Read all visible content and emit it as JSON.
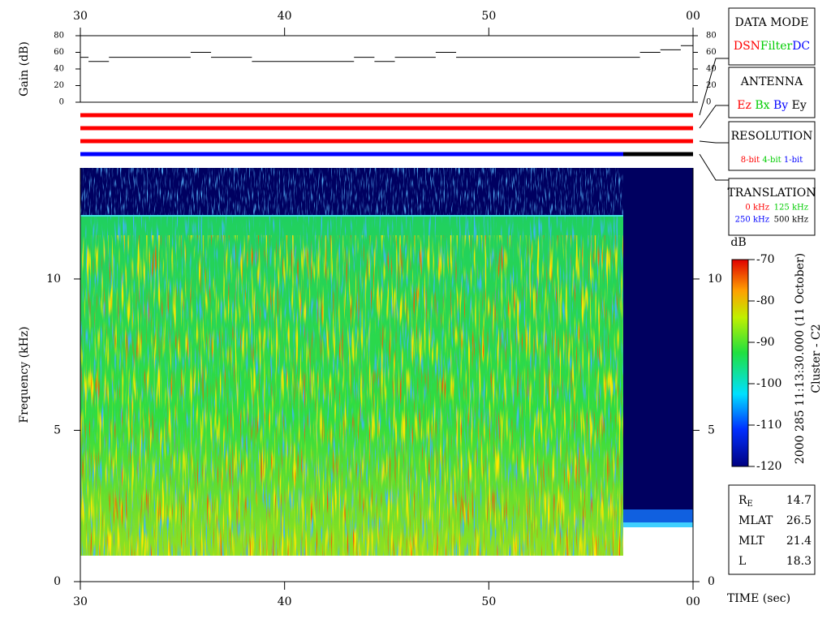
{
  "chart_data": [
    {
      "type": "step",
      "ylabel": "Gain (dB)",
      "x": [
        30,
        30.4,
        31.4,
        35.4,
        36.4,
        38.4,
        43.4,
        44.4,
        45.4,
        47.4,
        48.4,
        57.4,
        58.4,
        59.4
      ],
      "values": [
        54,
        49,
        54,
        60,
        54,
        49,
        54,
        49,
        54,
        60,
        54,
        60,
        63,
        68
      ],
      "color": "#000000",
      "xlim": [
        30,
        60
      ],
      "xticks": [
        30,
        40,
        50,
        {
          "value": 60,
          "label": "00"
        }
      ],
      "ylim": [
        0,
        80
      ],
      "yticks": [
        0,
        20,
        40,
        60,
        80
      ]
    },
    {
      "type": "spectrogram",
      "ylabel": "Frequency (kHz)",
      "xlabel": "TIME (sec)",
      "xlim": [
        30,
        60
      ],
      "xticks": [
        30,
        40,
        50,
        {
          "value": 60,
          "label": "00"
        }
      ],
      "ylim": [
        0,
        13.67
      ],
      "yticks": [
        0,
        5,
        10
      ],
      "colorbar": {
        "label": "dB",
        "lim": [
          -120,
          -70
        ],
        "ticks": [
          -70,
          -80,
          -90,
          -100,
          -110,
          -120
        ]
      }
    }
  ],
  "panels": [
    {
      "title": "DATA MODE",
      "items": [
        {
          "text": "DSN",
          "color": "#ff0000"
        },
        {
          "text": "Filter",
          "color": "#00cc00"
        },
        {
          "text": "DC",
          "color": "#0000ff"
        }
      ]
    },
    {
      "title": "ANTENNA",
      "items": [
        {
          "text": "Ez",
          "color": "#ff0000"
        },
        {
          "text": "Bx",
          "color": "#00cc00"
        },
        {
          "text": "By",
          "color": "#0000ff"
        },
        {
          "text": "Ey",
          "color": "#000000"
        }
      ]
    },
    {
      "title": "RESOLUTION",
      "items": [
        {
          "text": "8-bit",
          "color": "#ff0000"
        },
        {
          "text": "4-bit",
          "color": "#00cc00"
        },
        {
          "text": "1-bit",
          "color": "#0000ff"
        }
      ]
    },
    {
      "title": "TRANSLATION",
      "items": [
        {
          "text": "0 kHz",
          "color": "#ff0000"
        },
        {
          "text": "125 kHz",
          "color": "#00cc00"
        },
        {
          "text": "250 kHz",
          "color": "#0000ff"
        },
        {
          "text": "500 kHz",
          "color": "#000000"
        }
      ]
    }
  ],
  "params": [
    {
      "label": "R",
      "sub": "E",
      "value": 14.7
    },
    {
      "label": "MLAT",
      "value": 26.5
    },
    {
      "label": "MLT",
      "value": 21.4
    },
    {
      "label": "L",
      "value": 18.3
    }
  ],
  "caption": [
    "2000 285 11:13:30.000 (11 October)",
    "Cluster - C2"
  ]
}
